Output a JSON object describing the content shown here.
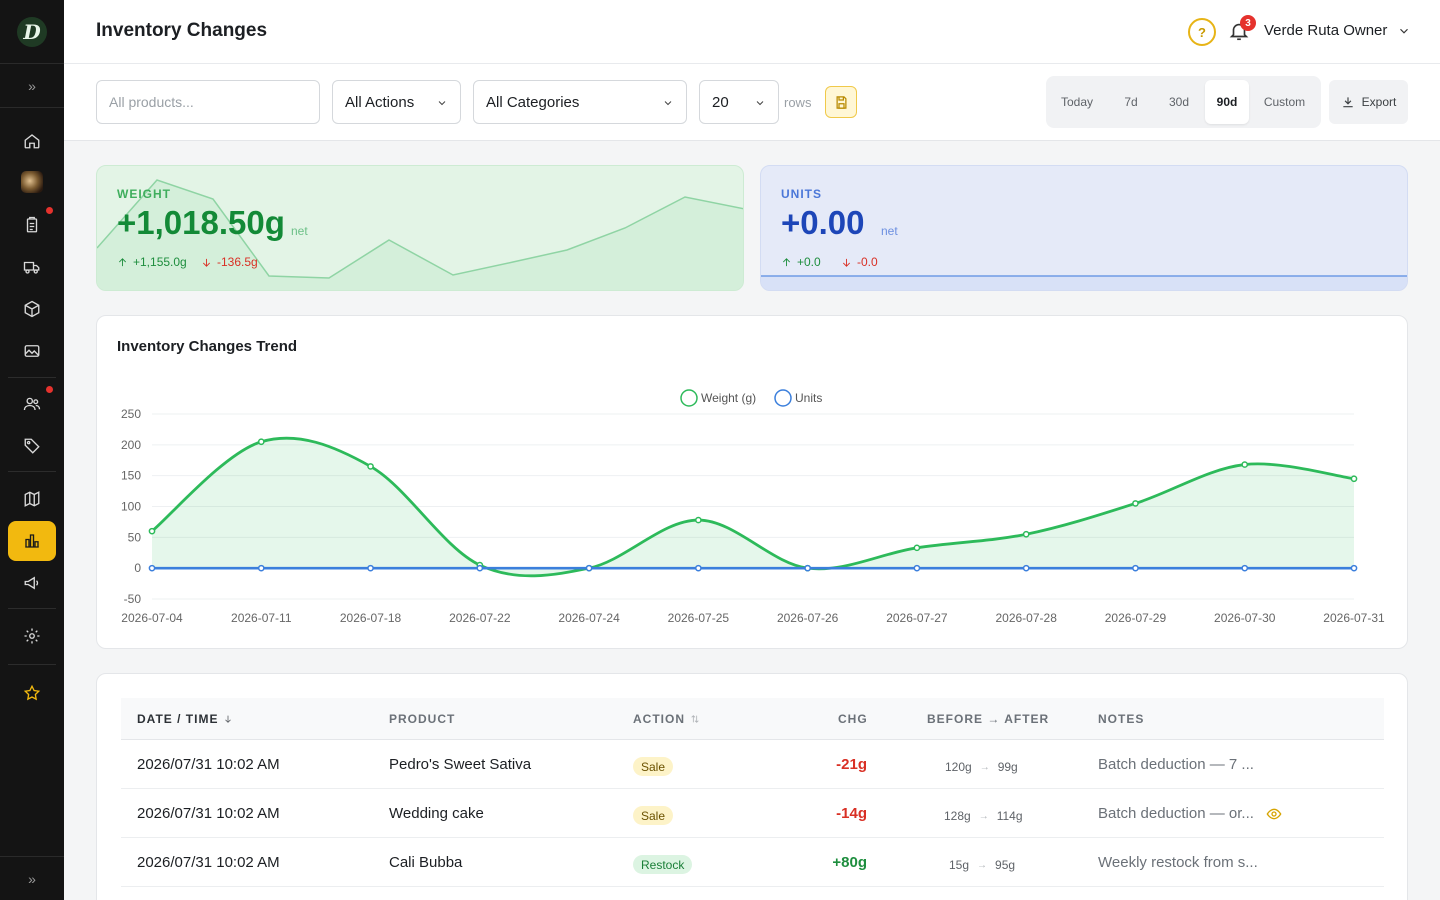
{
  "header": {
    "title": "Inventory Changes",
    "notifications_count": "3",
    "user_name": "Verde Ruta Owner"
  },
  "filters": {
    "product_placeholder": "All products...",
    "action": "All Actions",
    "category": "All Categories",
    "rows": "20",
    "rows_label": "rows"
  },
  "range": {
    "options": [
      "Today",
      "7d",
      "30d",
      "90d",
      "Custom"
    ],
    "selected": "90d"
  },
  "export_label": "Export",
  "stats": {
    "weight": {
      "label": "WEIGHT",
      "value": "+1,018.50g",
      "net": "net",
      "in": "+1,155.0g",
      "out": "-136.5g"
    },
    "units": {
      "label": "UNITS",
      "value": "+0.00",
      "net": "net",
      "in": "+0.0",
      "out": "-0.0"
    }
  },
  "chart_title": "Inventory Changes Trend",
  "colors": {
    "weight": "#2dba5a",
    "units": "#3b7fdc",
    "accent": "#f2b90f"
  },
  "chart_data": {
    "type": "line",
    "x": [
      "2026-07-04",
      "2026-07-11",
      "2026-07-18",
      "2026-07-22",
      "2026-07-24",
      "2026-07-25",
      "2026-07-26",
      "2026-07-27",
      "2026-07-28",
      "2026-07-29",
      "2026-07-30",
      "2026-07-31"
    ],
    "series": [
      {
        "name": "Weight (g)",
        "values": [
          60,
          205,
          165,
          5,
          0,
          78,
          0,
          33,
          55,
          105,
          168,
          145
        ]
      },
      {
        "name": "Units",
        "values": [
          0,
          0,
          0,
          0,
          0,
          0,
          0,
          0,
          0,
          0,
          0,
          0
        ]
      }
    ],
    "ylim": [
      -50,
      250
    ],
    "yticks": [
      250,
      200,
      150,
      100,
      50,
      0,
      -50
    ],
    "legend": "top-center",
    "grid": true
  },
  "table": {
    "columns": [
      "DATE / TIME",
      "PRODUCT",
      "ACTION",
      "CHG",
      "BEFORE → AFTER",
      "NOTES"
    ],
    "rows": [
      {
        "datetime": "2026/07/31 10:02 AM",
        "product": "Pedro's Sweet Sativa",
        "action": "Sale",
        "chg": "-21g",
        "before": "120g",
        "after": "99g",
        "notes": "Batch deduction — 7 ..."
      },
      {
        "datetime": "2026/07/31 10:02 AM",
        "product": "Wedding cake",
        "action": "Sale",
        "chg": "-14g",
        "before": "128g",
        "after": "114g",
        "notes": "Batch deduction — or..."
      },
      {
        "datetime": "2026/07/31 10:02 AM",
        "product": "Cali Bubba",
        "action": "Restock",
        "chg": "+80g",
        "before": "15g",
        "after": "95g",
        "notes": "Weekly restock from s..."
      }
    ]
  }
}
